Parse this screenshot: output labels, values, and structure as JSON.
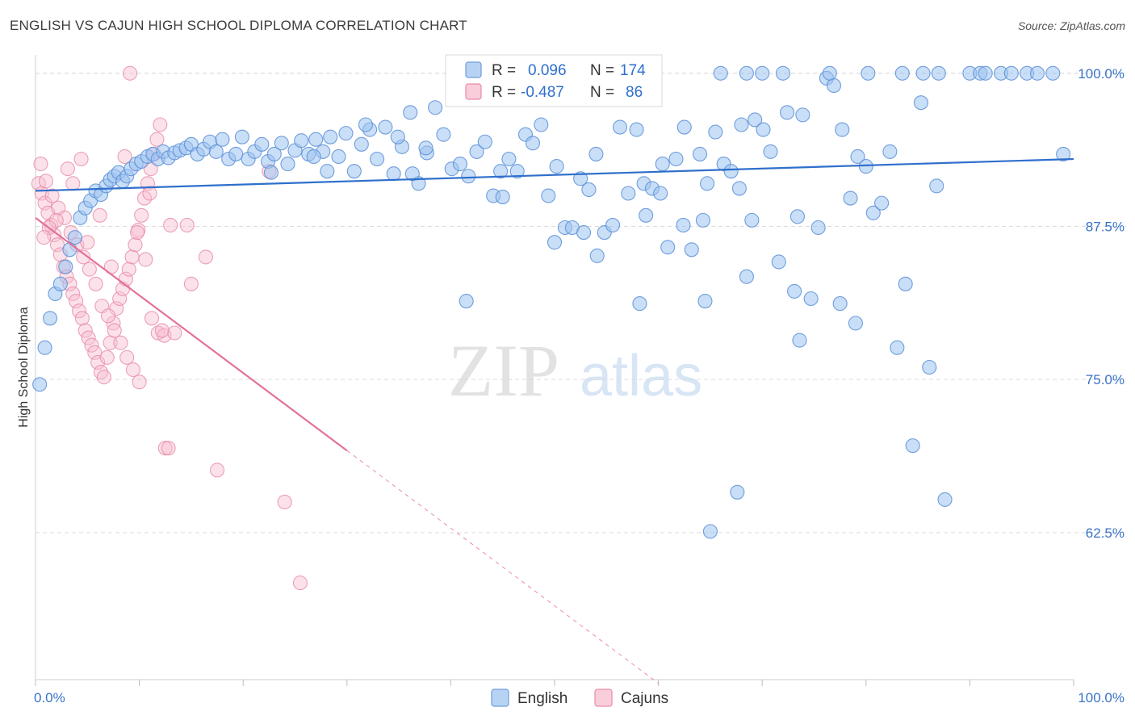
{
  "header": {
    "title": "ENGLISH VS CAJUN HIGH SCHOOL DIPLOMA CORRELATION CHART",
    "source": "Source: ZipAtlas.com"
  },
  "watermark": {
    "zip": "ZIP",
    "atlas": "atlas"
  },
  "legend_top": {
    "english": {
      "r_label": "R =",
      "r_value": "0.096",
      "n_label": "N =",
      "n_value": "174"
    },
    "cajuns": {
      "r_label": "R =",
      "r_value": "-0.487",
      "n_label": "N =",
      "n_value": "86"
    }
  },
  "legend_bottom": {
    "english": "English",
    "cajuns": "Cajuns"
  },
  "colors": {
    "english_fill": "#9dc3f0",
    "english_stroke": "#5b8fd6",
    "english_line": "#2f6fcc",
    "cajuns_fill": "#f7bfd0",
    "cajuns_stroke": "#e98aa8",
    "cajuns_line": "#e4719a",
    "tick_text": "#3a72c8",
    "grid": "#dcdcdc"
  },
  "chart_data": {
    "type": "scatter",
    "title": "ENGLISH VS CAJUN HIGH SCHOOL DIPLOMA CORRELATION CHART",
    "xlabel": "",
    "ylabel": "High School Diploma",
    "xlim": [
      0,
      100
    ],
    "ylim": [
      50.5,
      101.5
    ],
    "x_tick_labels": [
      "0.0%",
      "100.0%"
    ],
    "y_ticks": [
      62.5,
      75.0,
      87.5,
      100.0
    ],
    "y_tick_labels": [
      "62.5%",
      "75.0%",
      "87.5%",
      "100.0%"
    ],
    "grid": "horizontal dashed",
    "legend_placement": "top-center and bottom",
    "series": [
      {
        "name": "English",
        "r": 0.096,
        "n": 174,
        "trend": {
          "x": [
            0,
            100
          ],
          "y": [
            90.4,
            93.0
          ]
        },
        "points": [
          [
            0.4,
            74.6
          ],
          [
            0.9,
            77.6
          ],
          [
            1.4,
            80.0
          ],
          [
            1.9,
            82.0
          ],
          [
            2.4,
            82.8
          ],
          [
            2.9,
            84.2
          ],
          [
            3.3,
            85.6
          ],
          [
            3.8,
            86.6
          ],
          [
            4.3,
            88.2
          ],
          [
            4.8,
            89.0
          ],
          [
            5.3,
            89.6
          ],
          [
            5.8,
            90.4
          ],
          [
            6.3,
            90.1
          ],
          [
            6.8,
            90.8
          ],
          [
            7.2,
            91.3
          ],
          [
            7.6,
            91.6
          ],
          [
            8.0,
            91.9
          ],
          [
            8.4,
            91.2
          ],
          [
            8.8,
            91.6
          ],
          [
            9.2,
            92.2
          ],
          [
            9.7,
            92.6
          ],
          [
            10.2,
            92.8
          ],
          [
            10.8,
            93.2
          ],
          [
            11.3,
            93.4
          ],
          [
            11.8,
            93.0
          ],
          [
            12.3,
            93.6
          ],
          [
            12.8,
            93.1
          ],
          [
            13.4,
            93.5
          ],
          [
            13.9,
            93.7
          ],
          [
            14.5,
            93.9
          ],
          [
            15.0,
            94.2
          ],
          [
            15.6,
            93.4
          ],
          [
            16.2,
            93.8
          ],
          [
            16.8,
            94.4
          ],
          [
            17.4,
            93.6
          ],
          [
            18.0,
            94.6
          ],
          [
            18.6,
            93.0
          ],
          [
            19.3,
            93.4
          ],
          [
            19.9,
            94.8
          ],
          [
            20.5,
            93.0
          ],
          [
            21.1,
            93.6
          ],
          [
            21.8,
            94.2
          ],
          [
            22.4,
            92.8
          ],
          [
            23.0,
            93.4
          ],
          [
            23.7,
            94.3
          ],
          [
            24.3,
            92.6
          ],
          [
            25.0,
            93.7
          ],
          [
            25.6,
            94.5
          ],
          [
            26.3,
            93.4
          ],
          [
            27.0,
            94.6
          ],
          [
            27.7,
            93.6
          ],
          [
            28.4,
            94.8
          ],
          [
            29.2,
            93.2
          ],
          [
            29.9,
            95.1
          ],
          [
            30.7,
            92.0
          ],
          [
            31.4,
            94.2
          ],
          [
            32.2,
            95.4
          ],
          [
            32.9,
            93.0
          ],
          [
            33.7,
            95.6
          ],
          [
            34.5,
            91.8
          ],
          [
            35.3,
            94.0
          ],
          [
            36.1,
            96.8
          ],
          [
            36.9,
            91.0
          ],
          [
            37.7,
            93.5
          ],
          [
            38.5,
            97.2
          ],
          [
            39.3,
            95.0
          ],
          [
            40.1,
            92.2
          ],
          [
            40.9,
            92.6
          ],
          [
            41.7,
            91.6
          ],
          [
            42.5,
            93.6
          ],
          [
            43.3,
            94.4
          ],
          [
            44.1,
            90.0
          ],
          [
            44.8,
            92.0
          ],
          [
            45.6,
            93.0
          ],
          [
            46.4,
            92.0
          ],
          [
            47.2,
            95.0
          ],
          [
            47.9,
            94.3
          ],
          [
            48.7,
            95.8
          ],
          [
            49.4,
            90.0
          ],
          [
            50.2,
            92.4
          ],
          [
            51.0,
            87.4
          ],
          [
            51.7,
            87.4
          ],
          [
            52.5,
            91.4
          ],
          [
            53.3,
            90.5
          ],
          [
            54.0,
            93.4
          ],
          [
            54.8,
            87.0
          ],
          [
            55.6,
            87.6
          ],
          [
            56.3,
            95.6
          ],
          [
            57.1,
            90.2
          ],
          [
            57.9,
            95.4
          ],
          [
            58.6,
            91.0
          ],
          [
            59.4,
            90.6
          ],
          [
            60.2,
            90.2
          ],
          [
            60.9,
            85.8
          ],
          [
            61.7,
            93.0
          ],
          [
            62.4,
            87.6
          ],
          [
            63.2,
            85.6
          ],
          [
            64.0,
            93.4
          ],
          [
            64.7,
            91.0
          ],
          [
            65.5,
            95.2
          ],
          [
            66.3,
            92.6
          ],
          [
            67.0,
            92.0
          ],
          [
            67.8,
            90.6
          ],
          [
            68.5,
            83.4
          ],
          [
            69.3,
            96.2
          ],
          [
            70.1,
            95.4
          ],
          [
            70.8,
            93.6
          ],
          [
            71.6,
            84.6
          ],
          [
            72.4,
            96.8
          ],
          [
            73.1,
            82.2
          ],
          [
            73.9,
            96.6
          ],
          [
            74.7,
            81.6
          ],
          [
            75.4,
            87.4
          ],
          [
            76.2,
            99.6
          ],
          [
            76.9,
            99.0
          ],
          [
            77.7,
            95.4
          ],
          [
            78.5,
            89.8
          ],
          [
            79.2,
            93.2
          ],
          [
            80.0,
            92.4
          ],
          [
            80.7,
            88.6
          ],
          [
            81.5,
            89.4
          ],
          [
            82.3,
            93.6
          ],
          [
            83.0,
            77.6
          ],
          [
            83.8,
            82.8
          ],
          [
            84.5,
            69.6
          ],
          [
            85.3,
            97.6
          ],
          [
            86.1,
            76.0
          ],
          [
            86.8,
            90.8
          ],
          [
            87.6,
            65.2
          ],
          [
            64.5,
            81.4
          ],
          [
            69.0,
            88.0
          ],
          [
            41.5,
            81.4
          ],
          [
            58.2,
            81.2
          ],
          [
            65.0,
            62.6
          ],
          [
            67.6,
            65.8
          ],
          [
            73.6,
            78.2
          ],
          [
            79.0,
            79.6
          ],
          [
            59.5,
            100.0
          ],
          [
            66.0,
            100.0
          ],
          [
            68.5,
            100.0
          ],
          [
            70.0,
            100.0
          ],
          [
            72.0,
            100.0
          ],
          [
            76.5,
            100.0
          ],
          [
            80.2,
            100.0
          ],
          [
            83.5,
            100.0
          ],
          [
            85.5,
            100.0
          ],
          [
            87.0,
            100.0
          ],
          [
            90.0,
            100.0
          ],
          [
            91.0,
            100.0
          ],
          [
            93.0,
            100.0
          ],
          [
            94.0,
            100.0
          ],
          [
            95.5,
            100.0
          ],
          [
            96.5,
            100.0
          ],
          [
            98.0,
            100.0
          ],
          [
            91.5,
            100.0
          ],
          [
            62.5,
            95.6
          ],
          [
            68.0,
            95.8
          ],
          [
            99.0,
            93.4
          ],
          [
            64.3,
            88.0
          ],
          [
            36.3,
            91.8
          ],
          [
            26.8,
            93.2
          ],
          [
            31.8,
            95.8
          ],
          [
            37.6,
            93.9
          ],
          [
            45.0,
            89.9
          ],
          [
            50.0,
            86.2
          ],
          [
            52.8,
            87.0
          ],
          [
            54.1,
            85.1
          ],
          [
            58.8,
            88.4
          ],
          [
            60.4,
            92.6
          ],
          [
            73.4,
            88.3
          ],
          [
            77.5,
            81.2
          ],
          [
            28.1,
            92.0
          ],
          [
            22.7,
            91.9
          ],
          [
            34.9,
            94.8
          ]
        ]
      },
      {
        "name": "Cajuns",
        "r": -0.487,
        "n": 86,
        "trend_solid": {
          "x": [
            0,
            30
          ],
          "y": [
            88.2,
            69.2
          ]
        },
        "trend_dashed": {
          "x": [
            30,
            60
          ],
          "y": [
            69.2,
            50.2
          ]
        },
        "points": [
          [
            0.3,
            91.0
          ],
          [
            0.6,
            90.2
          ],
          [
            0.9,
            89.4
          ],
          [
            1.2,
            88.6
          ],
          [
            1.5,
            87.6
          ],
          [
            1.8,
            86.8
          ],
          [
            2.1,
            86.0
          ],
          [
            2.4,
            85.2
          ],
          [
            2.7,
            84.2
          ],
          [
            3.0,
            83.4
          ],
          [
            3.3,
            82.8
          ],
          [
            3.6,
            82.0
          ],
          [
            3.9,
            81.4
          ],
          [
            4.2,
            80.6
          ],
          [
            4.5,
            80.0
          ],
          [
            4.8,
            79.0
          ],
          [
            5.1,
            78.4
          ],
          [
            5.4,
            77.8
          ],
          [
            5.7,
            77.2
          ],
          [
            6.0,
            76.4
          ],
          [
            6.3,
            75.6
          ],
          [
            6.6,
            75.2
          ],
          [
            6.9,
            76.8
          ],
          [
            7.2,
            78.0
          ],
          [
            7.5,
            79.6
          ],
          [
            7.8,
            80.8
          ],
          [
            8.1,
            81.6
          ],
          [
            8.4,
            82.4
          ],
          [
            8.7,
            83.2
          ],
          [
            9.0,
            84.0
          ],
          [
            9.3,
            85.0
          ],
          [
            9.6,
            86.0
          ],
          [
            9.9,
            87.2
          ],
          [
            10.2,
            88.4
          ],
          [
            10.5,
            89.8
          ],
          [
            10.8,
            91.0
          ],
          [
            11.1,
            92.2
          ],
          [
            11.4,
            93.4
          ],
          [
            11.7,
            94.6
          ],
          [
            12.0,
            95.8
          ],
          [
            1.0,
            91.2
          ],
          [
            1.6,
            90.0
          ],
          [
            2.2,
            89.0
          ],
          [
            2.8,
            88.2
          ],
          [
            3.4,
            87.0
          ],
          [
            4.0,
            86.0
          ],
          [
            4.6,
            85.0
          ],
          [
            5.2,
            84.0
          ],
          [
            5.8,
            82.8
          ],
          [
            6.4,
            81.0
          ],
          [
            7.0,
            80.2
          ],
          [
            7.6,
            79.0
          ],
          [
            8.2,
            78.0
          ],
          [
            8.8,
            76.8
          ],
          [
            9.4,
            75.8
          ],
          [
            10.0,
            74.8
          ],
          [
            10.6,
            84.8
          ],
          [
            11.2,
            80.0
          ],
          [
            11.8,
            78.8
          ],
          [
            12.4,
            78.6
          ],
          [
            12.5,
            69.4
          ],
          [
            12.8,
            69.4
          ],
          [
            13.0,
            87.6
          ],
          [
            14.6,
            87.6
          ],
          [
            15.0,
            82.8
          ],
          [
            16.4,
            85.0
          ],
          [
            17.5,
            67.6
          ],
          [
            22.5,
            92.0
          ],
          [
            24.0,
            65.0
          ],
          [
            25.5,
            58.4
          ],
          [
            9.1,
            100.0
          ],
          [
            8.6,
            93.2
          ],
          [
            6.2,
            88.4
          ],
          [
            5.0,
            86.2
          ],
          [
            3.6,
            91.0
          ],
          [
            2.0,
            88.0
          ],
          [
            1.3,
            87.4
          ],
          [
            0.8,
            86.6
          ],
          [
            4.4,
            93.0
          ],
          [
            3.1,
            92.2
          ],
          [
            7.3,
            84.2
          ],
          [
            9.8,
            87.0
          ],
          [
            11.0,
            90.2
          ],
          [
            12.2,
            79.0
          ],
          [
            13.4,
            78.8
          ],
          [
            0.5,
            92.6
          ]
        ]
      }
    ]
  }
}
